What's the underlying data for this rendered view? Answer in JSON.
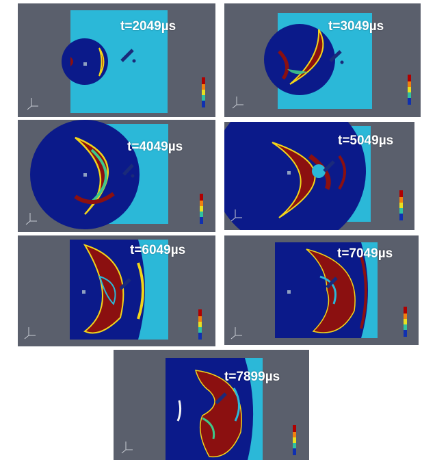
{
  "colors": {
    "viewport_bg": "#5a5f6c",
    "domain_light": "#2bb8d8",
    "domain_dark": "#0b1a8a",
    "pressure_red": "#8b1010",
    "pressure_yellow": "#f2d51a",
    "pressure_green": "#3ec98a"
  },
  "frames": [
    {
      "time_label": "t=2049µs",
      "stage": 1
    },
    {
      "time_label": "t=3049µs",
      "stage": 2
    },
    {
      "time_label": "t=4049µs",
      "stage": 3
    },
    {
      "time_label": "t=5049µs",
      "stage": 4
    },
    {
      "time_label": "t=6049µs",
      "stage": 5
    },
    {
      "time_label": "t=7049µs",
      "stage": 6
    },
    {
      "time_label": "t=7899µs",
      "stage": 7
    }
  ]
}
